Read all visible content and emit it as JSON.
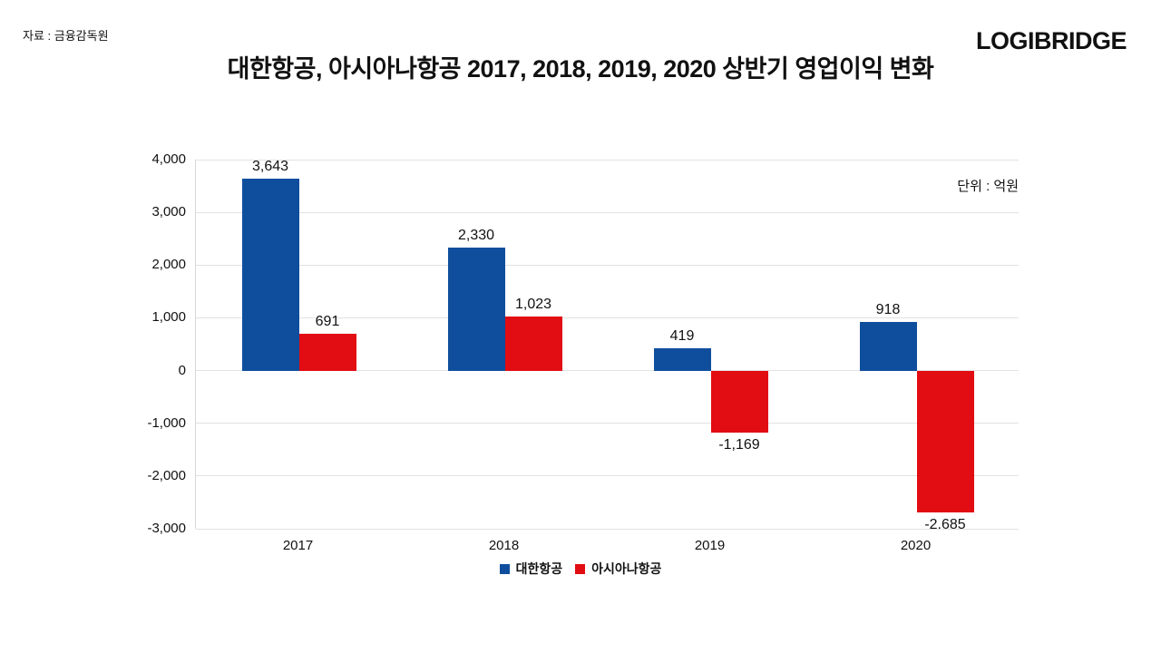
{
  "meta": {
    "source": "자료 : 금융감독원",
    "logo": "LOGIBRIDGE",
    "title": "대한항공, 아시아나항공 2017, 2018, 2019, 2020 상반기 영업이익 변화",
    "unit_label": "단위 : 억원"
  },
  "chart_data": {
    "type": "bar",
    "categories": [
      "2017",
      "2018",
      "2019",
      "2020"
    ],
    "series": [
      {
        "name": "대한항공",
        "color": "#0f4e9d",
        "values": [
          3643,
          2330,
          419,
          918
        ],
        "labels": [
          "3,643",
          "2,330",
          "419",
          "918"
        ]
      },
      {
        "name": "아시아나항공",
        "color": "#e20c13",
        "values": [
          691,
          1023,
          -1169,
          -2685
        ],
        "labels": [
          "691",
          "1,023",
          "-1,169",
          "-2.685"
        ]
      }
    ],
    "title": "대한항공, 아시아나항공 2017, 2018, 2019, 2020 상반기 영업이익 변화",
    "xlabel": "",
    "ylabel": "단위 : 억원",
    "ylim": [
      -3000,
      4000
    ],
    "ytick_step": 1000,
    "ytick_labels": [
      "4,000",
      "3,000",
      "2,000",
      "1,000",
      "0",
      "-1,000",
      "-2,000",
      "-3,000"
    ],
    "grid": true,
    "legend_position": "bottom"
  }
}
